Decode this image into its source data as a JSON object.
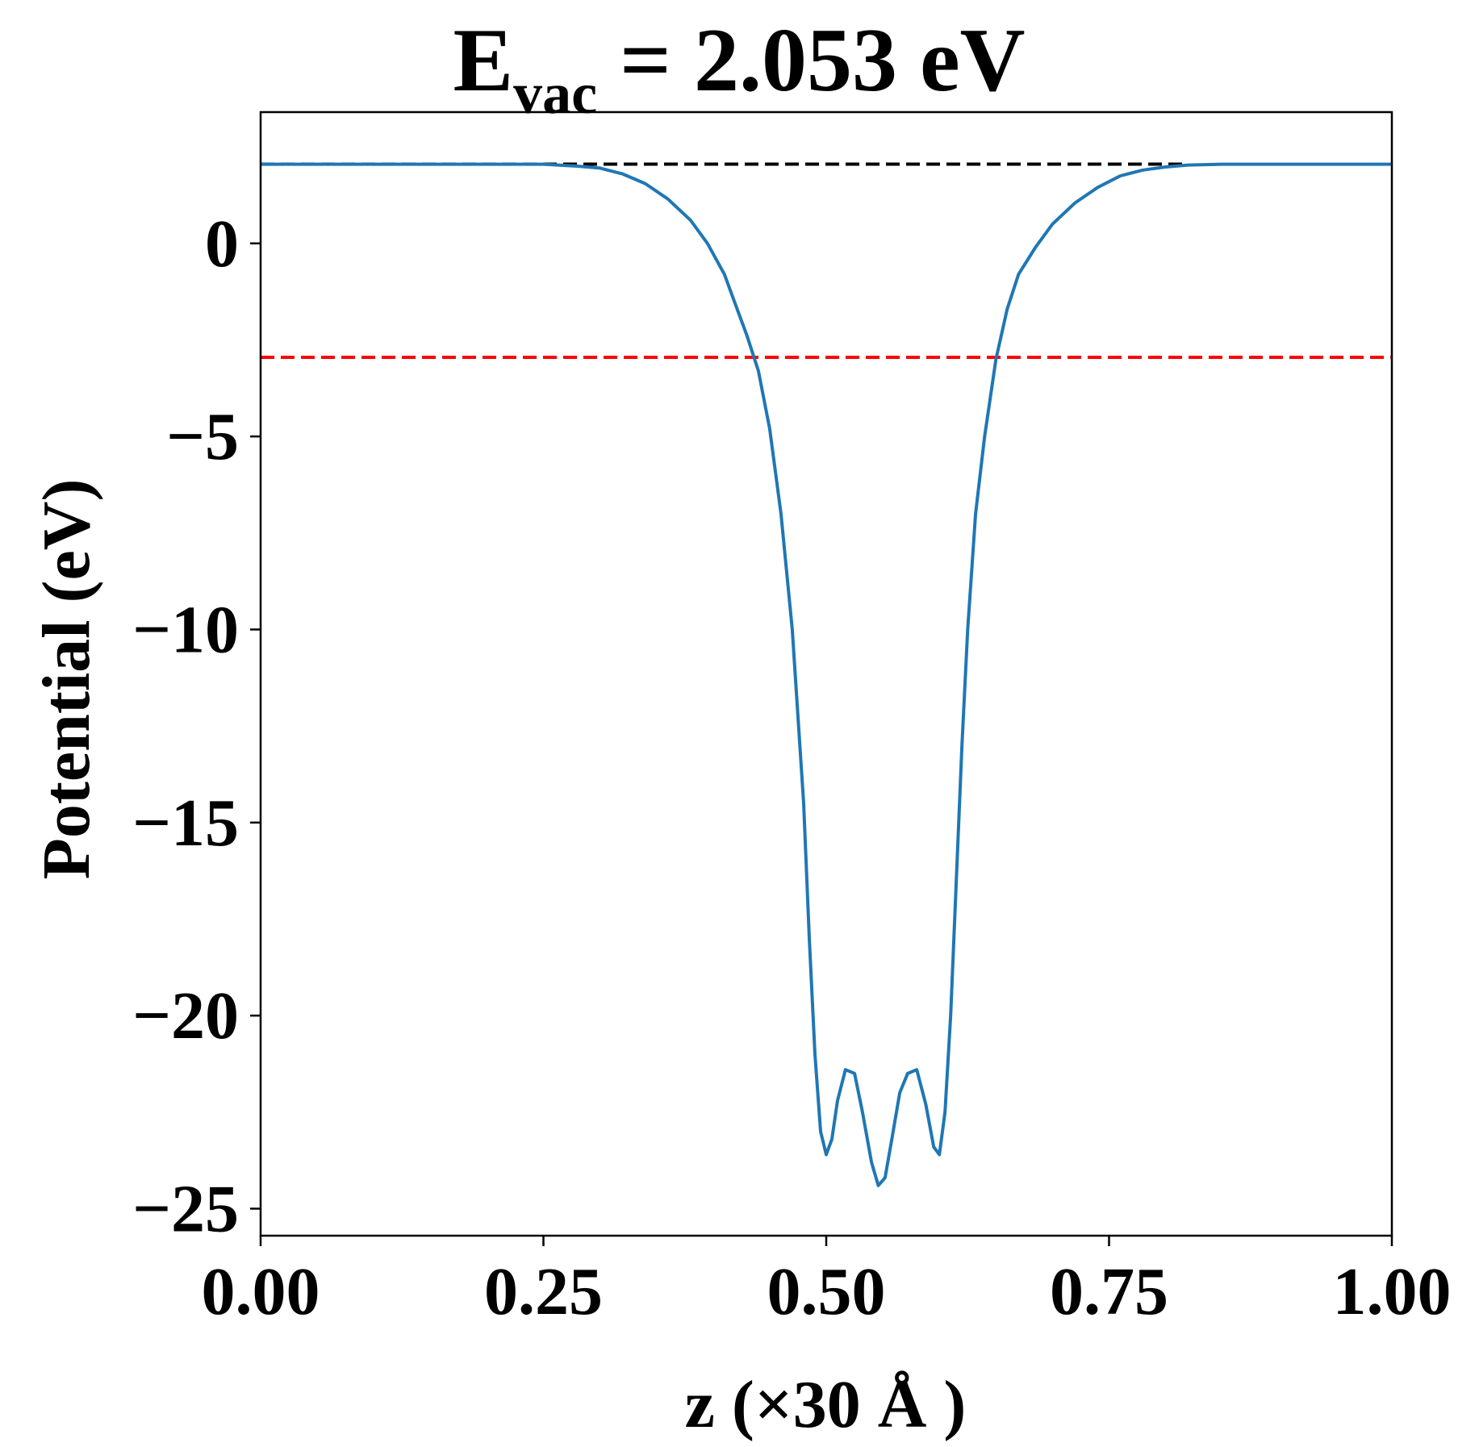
{
  "chart_data": {
    "type": "line",
    "title": {
      "main": "E",
      "subscript": "vac",
      "rest": " = 2.053 eV"
    },
    "xlabel": "z (×30 Å )",
    "ylabel": "Potential (eV)",
    "xlim": [
      0.0,
      1.0
    ],
    "ylim": [
      -25.7,
      3.4
    ],
    "x_ticks": [
      0.0,
      0.25,
      0.5,
      0.75,
      1.0
    ],
    "x_tick_labels": [
      "0.00",
      "0.25",
      "0.50",
      "0.75",
      "1.00"
    ],
    "y_ticks": [
      0,
      -5,
      -10,
      -15,
      -20,
      -25
    ],
    "y_tick_labels": [
      "0",
      "−5",
      "−10",
      "−15",
      "−20",
      "−25"
    ],
    "grid": false,
    "reference_lines": [
      {
        "y": 2.053,
        "x_range": [
          0.0,
          0.82
        ],
        "color": "#000000",
        "style": "dashed"
      },
      {
        "y": -2.95,
        "x_range": [
          0.0,
          1.0
        ],
        "color": "#ff0000",
        "style": "dashed"
      }
    ],
    "series": [
      {
        "color": "#1f77b4",
        "points": [
          [
            0.0,
            2.05
          ],
          [
            0.05,
            2.05
          ],
          [
            0.1,
            2.05
          ],
          [
            0.15,
            2.05
          ],
          [
            0.2,
            2.05
          ],
          [
            0.25,
            2.05
          ],
          [
            0.28,
            2.0
          ],
          [
            0.3,
            1.95
          ],
          [
            0.32,
            1.8
          ],
          [
            0.34,
            1.55
          ],
          [
            0.36,
            1.15
          ],
          [
            0.38,
            0.6
          ],
          [
            0.395,
            0.0
          ],
          [
            0.41,
            -0.8
          ],
          [
            0.42,
            -1.6
          ],
          [
            0.43,
            -2.4
          ],
          [
            0.44,
            -3.3
          ],
          [
            0.45,
            -4.8
          ],
          [
            0.46,
            -7.0
          ],
          [
            0.47,
            -10.0
          ],
          [
            0.48,
            -14.5
          ],
          [
            0.485,
            -18.0
          ],
          [
            0.49,
            -21.0
          ],
          [
            0.495,
            -23.0
          ],
          [
            0.5,
            -23.6
          ],
          [
            0.505,
            -23.2
          ],
          [
            0.51,
            -22.2
          ],
          [
            0.517,
            -21.4
          ],
          [
            0.525,
            -21.5
          ],
          [
            0.532,
            -22.5
          ],
          [
            0.54,
            -23.8
          ],
          [
            0.546,
            -24.4
          ],
          [
            0.552,
            -24.2
          ],
          [
            0.558,
            -23.2
          ],
          [
            0.565,
            -22.0
          ],
          [
            0.572,
            -21.5
          ],
          [
            0.58,
            -21.4
          ],
          [
            0.588,
            -22.3
          ],
          [
            0.595,
            -23.4
          ],
          [
            0.6,
            -23.6
          ],
          [
            0.605,
            -22.5
          ],
          [
            0.61,
            -20.0
          ],
          [
            0.615,
            -16.5
          ],
          [
            0.62,
            -13.0
          ],
          [
            0.625,
            -10.0
          ],
          [
            0.632,
            -7.0
          ],
          [
            0.64,
            -5.0
          ],
          [
            0.65,
            -3.0
          ],
          [
            0.66,
            -1.7
          ],
          [
            0.67,
            -0.8
          ],
          [
            0.685,
            -0.1
          ],
          [
            0.7,
            0.5
          ],
          [
            0.72,
            1.05
          ],
          [
            0.74,
            1.45
          ],
          [
            0.76,
            1.75
          ],
          [
            0.78,
            1.9
          ],
          [
            0.8,
            1.98
          ],
          [
            0.82,
            2.03
          ],
          [
            0.85,
            2.05
          ],
          [
            0.9,
            2.05
          ],
          [
            0.95,
            2.05
          ],
          [
            1.0,
            2.05
          ]
        ]
      }
    ]
  }
}
